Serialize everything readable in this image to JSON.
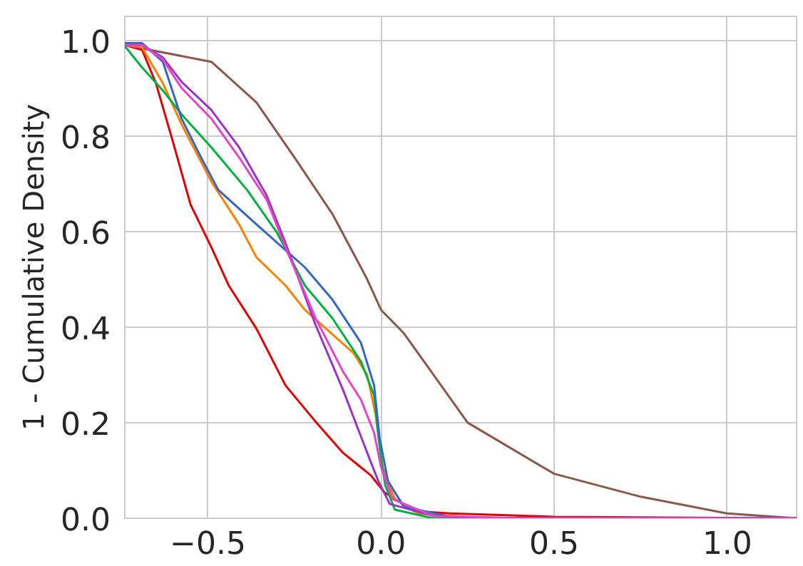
{
  "chart_data": {
    "type": "line",
    "ylabel": "1 - Cumulative Density",
    "xlim": [
      -0.74,
      1.2
    ],
    "ylim": [
      0,
      1.05
    ],
    "xticks": [
      {
        "value": -0.5,
        "label": "−0.5"
      },
      {
        "value": 0.0,
        "label": "0.0"
      },
      {
        "value": 0.5,
        "label": "0.5"
      },
      {
        "value": 1.0,
        "label": "1.0"
      }
    ],
    "yticks": [
      {
        "value": 0,
        "label": "0.0"
      },
      {
        "value": 0.2,
        "label": "0.2"
      },
      {
        "value": 0.4,
        "label": "0.4"
      },
      {
        "value": 0.6,
        "label": "0.6"
      },
      {
        "value": 0.8,
        "label": "0.8"
      },
      {
        "value": 1.0,
        "label": "1.0"
      }
    ],
    "grid": true,
    "line_style": "solid",
    "marker": "none",
    "series": [
      {
        "color": "#8c564b",
        "x": [
          -0.74,
          -0.49,
          -0.36,
          -0.25,
          -0.14,
          -0.04,
          0.0,
          0.066,
          0.25,
          0.5,
          0.75,
          1.0,
          1.2
        ],
        "values": [
          0.99,
          0.955,
          0.87,
          0.755,
          0.636,
          0.5,
          0.436,
          0.387,
          0.2,
          0.093,
          0.045,
          0.01,
          0.0
        ]
      },
      {
        "color": "#e60000",
        "x": [
          -0.74,
          -0.69,
          -0.65,
          -0.6,
          -0.55,
          -0.49,
          -0.44,
          -0.36,
          -0.276,
          -0.19,
          -0.11,
          -0.03,
          0.01,
          0.095,
          0.2,
          0.5,
          1.2
        ],
        "values": [
          0.99,
          0.98,
          0.91,
          0.785,
          0.656,
          0.567,
          0.487,
          0.397,
          0.278,
          0.203,
          0.137,
          0.09,
          0.054,
          0.015,
          0.01,
          0.003,
          0.0
        ]
      },
      {
        "color": "#ff8000",
        "x": [
          -0.74,
          -0.69,
          -0.63,
          -0.576,
          -0.49,
          -0.41,
          -0.36,
          -0.276,
          -0.22,
          -0.08,
          -0.04,
          -0.016,
          0.004,
          0.04,
          0.107,
          0.3,
          1.2
        ],
        "values": [
          0.99,
          0.985,
          0.91,
          0.824,
          0.704,
          0.615,
          0.546,
          0.487,
          0.436,
          0.346,
          0.3,
          0.218,
          0.107,
          0.04,
          0.01,
          0.0,
          0.0
        ]
      },
      {
        "color": "#00b33c",
        "x": [
          -0.74,
          -0.69,
          -0.63,
          -0.576,
          -0.49,
          -0.387,
          -0.3,
          -0.22,
          -0.14,
          -0.058,
          -0.02,
          -0.004,
          0.012,
          0.04,
          0.15,
          1.2
        ],
        "values": [
          0.988,
          0.943,
          0.895,
          0.845,
          0.776,
          0.687,
          0.597,
          0.487,
          0.418,
          0.328,
          0.257,
          0.149,
          0.069,
          0.018,
          0.0,
          0.0
        ]
      },
      {
        "color": "#3366cc",
        "x": [
          -0.74,
          -0.69,
          -0.63,
          -0.576,
          -0.52,
          -0.47,
          -0.36,
          -0.22,
          -0.14,
          -0.058,
          -0.02,
          -0.004,
          0.02,
          0.066,
          0.2,
          0.4,
          1.2
        ],
        "values": [
          0.994,
          0.994,
          0.955,
          0.836,
          0.755,
          0.687,
          0.615,
          0.525,
          0.457,
          0.367,
          0.278,
          0.167,
          0.078,
          0.024,
          0.003,
          0.0,
          0.0
        ]
      },
      {
        "color": "#9933cc",
        "x": [
          -0.74,
          -0.69,
          -0.63,
          -0.576,
          -0.49,
          -0.41,
          -0.33,
          -0.276,
          -0.19,
          -0.11,
          -0.04,
          -0.008,
          0.025,
          0.15,
          0.3,
          1.2
        ],
        "values": [
          0.99,
          0.99,
          0.964,
          0.913,
          0.854,
          0.776,
          0.675,
          0.576,
          0.406,
          0.269,
          0.137,
          0.078,
          0.03,
          0.005,
          0.0,
          0.0
        ]
      },
      {
        "color": "#e643c8",
        "x": [
          -0.74,
          -0.69,
          -0.63,
          -0.576,
          -0.49,
          -0.41,
          -0.33,
          -0.276,
          -0.19,
          -0.11,
          -0.058,
          -0.02,
          0.0,
          0.033,
          0.15,
          0.4,
          1.2
        ],
        "values": [
          0.99,
          0.99,
          0.96,
          0.9,
          0.836,
          0.755,
          0.666,
          0.567,
          0.42,
          0.307,
          0.248,
          0.179,
          0.107,
          0.04,
          0.005,
          0.0,
          0.0
        ]
      }
    ]
  }
}
